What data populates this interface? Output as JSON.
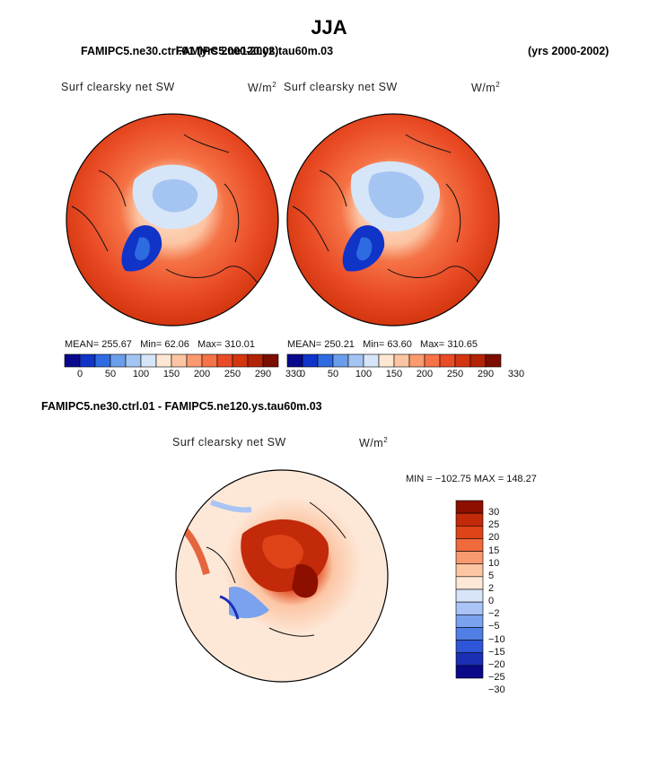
{
  "page": {
    "title": "JJA",
    "top_left_case": "FAMIPC5.ne30.ctrl.01 (yrs 2000-2002)",
    "top_overlap_case": "FAMIPC5.ne120.ys.tau60m.03",
    "top_right_years": "(yrs 2000-2002)",
    "diff_header": "FAMIPC5.ne30.ctrl.01 - FAMIPC5.ne120.ys.tau60m.03"
  },
  "colors": {
    "scale": [
      "#08088c",
      "#1033c8",
      "#2f6be0",
      "#6b9eea",
      "#a4c4f2",
      "#d6e6f8",
      "#fde6d2",
      "#fcc4a2",
      "#fa9a6e",
      "#f57346",
      "#e94b25",
      "#d3350f",
      "#b32306",
      "#7d0d00"
    ],
    "diff": [
      "#0a0a88",
      "#1b2fb5",
      "#2f55d8",
      "#507fe6",
      "#7aa2ee",
      "#a9c4f5",
      "#d7e4f9",
      "#fde8d8",
      "#fcc6a5",
      "#f89a70",
      "#f06a3c",
      "#df4318",
      "#c22a0a",
      "#8c0f00"
    ]
  },
  "chart_data": [
    {
      "type": "heatmap",
      "projection": "north-polar-stereographic",
      "title": "Surf clearsky net SW",
      "units": "W/m",
      "units_exp": "2",
      "stats": {
        "mean_label": "MEAN=",
        "mean": "255.67",
        "min_label": "Min=",
        "min": "62.06",
        "max_label": "Max=",
        "max": "310.01"
      },
      "colorbar_levels": [
        "0",
        "50",
        "100",
        "150",
        "200",
        "250",
        "290",
        "330"
      ]
    },
    {
      "type": "heatmap",
      "projection": "north-polar-stereographic",
      "title": "Surf clearsky net SW",
      "units": "W/m",
      "units_exp": "2",
      "stats": {
        "mean_label": "MEAN=",
        "mean": "250.21",
        "min_label": "Min=",
        "min": "63.60",
        "max_label": "Max=",
        "max": "310.65"
      },
      "colorbar_levels": [
        "0",
        "50",
        "100",
        "150",
        "200",
        "250",
        "290",
        "330"
      ]
    },
    {
      "type": "heatmap",
      "projection": "north-polar-stereographic",
      "title": "Surf clearsky net SW",
      "units": "W/m",
      "units_exp": "2",
      "minmax": "MIN = −102.75 MAX = 148.27",
      "colorbar_levels": [
        "30",
        "25",
        "20",
        "15",
        "10",
        "5",
        "2",
        "0",
        "−2",
        "−5",
        "−10",
        "−15",
        "−20",
        "−25",
        "−30"
      ]
    }
  ]
}
